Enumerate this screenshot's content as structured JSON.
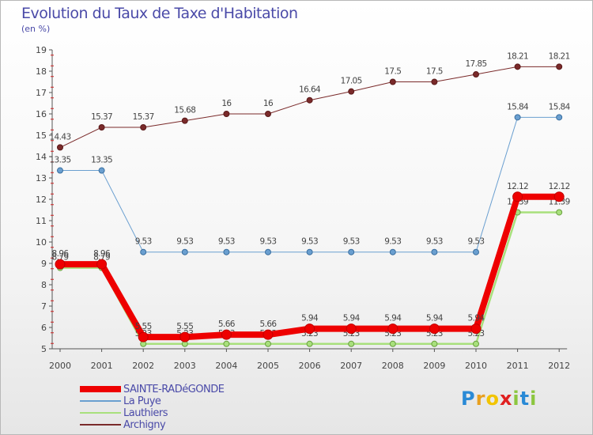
{
  "chart_data": {
    "type": "line",
    "title": "Evolution du Taux de Taxe d'Habitation",
    "subtitle": "(en %)",
    "xlabel": "",
    "ylabel": "(en %)",
    "x": [
      "2000",
      "2001",
      "2002",
      "2003",
      "2004",
      "2005",
      "2006",
      "2007",
      "2008",
      "2009",
      "2010",
      "2011",
      "2012"
    ],
    "ylim": [
      5,
      19
    ],
    "yticks": [
      5,
      6,
      7,
      8,
      9,
      10,
      11,
      12,
      13,
      14,
      15,
      16,
      17,
      18,
      19
    ],
    "grid": false,
    "legend_position": "bottom-left",
    "series": [
      {
        "name": "Archigny",
        "color": "#7a2a2a",
        "values": [
          14.43,
          15.37,
          15.37,
          15.68,
          16,
          16,
          16.64,
          17.05,
          17.5,
          17.5,
          17.85,
          18.21,
          18.21
        ],
        "labels": [
          "14.43",
          "15.37",
          "15.37",
          "15.68",
          "16",
          "16",
          "16.64",
          "17.05",
          "17.5",
          "17.5",
          "17.85",
          "18.21",
          "18.21"
        ]
      },
      {
        "name": "La Puye",
        "color": "#6a9fd0",
        "values": [
          13.35,
          13.35,
          9.53,
          9.53,
          9.53,
          9.53,
          9.53,
          9.53,
          9.53,
          9.53,
          9.53,
          15.84,
          15.84
        ],
        "labels": [
          "13.35",
          "13.35",
          "9.53",
          "9.53",
          "9.53",
          "9.53",
          "9.53",
          "9.53",
          "9.53",
          "9.53",
          "9.53",
          "15.84",
          "15.84"
        ]
      },
      {
        "name": "Lauthiers",
        "color": "#a8e07c",
        "values": [
          8.79,
          8.79,
          5.23,
          5.23,
          5.23,
          5.23,
          5.23,
          5.23,
          5.23,
          5.23,
          5.23,
          11.39,
          11.39
        ],
        "labels": [
          "8.79",
          "8.79",
          "5.23",
          "5.23",
          "5.23",
          "5.23",
          "5.23",
          "5.23",
          "5.23",
          "5.23",
          "5.23",
          "11.39",
          "11.39"
        ]
      },
      {
        "name": "SAINTE-RADéGONDE",
        "color": "#ee0000",
        "values": [
          8.96,
          8.96,
          5.55,
          5.55,
          5.66,
          5.66,
          5.94,
          5.94,
          5.94,
          5.94,
          5.94,
          12.12,
          12.12
        ],
        "labels": [
          "8.96",
          "8.96",
          "5.55",
          "5.55",
          "5.66",
          "5.66",
          "5.94",
          "5.94",
          "5.94",
          "5.94",
          "5.94",
          "12.12",
          "12.12"
        ]
      }
    ]
  },
  "legend": {
    "items": [
      {
        "label": "SAINTE-RADéGONDE",
        "color": "#ee0000",
        "weight": "thick"
      },
      {
        "label": "La Puye",
        "color": "#6a9fd0",
        "weight": "thin"
      },
      {
        "label": "Lauthiers",
        "color": "#a8e07c",
        "weight": "thin"
      },
      {
        "label": "Archigny",
        "color": "#7a2a2a",
        "weight": "thin"
      }
    ]
  },
  "logo": {
    "letters": [
      "P",
      "r",
      "o",
      "x",
      "i",
      "t",
      "i"
    ],
    "colors": [
      "#2a8ad6",
      "#e8a020",
      "#f2c400",
      "#e02020",
      "#8cc63f",
      "#2a8ad6",
      "#8cc63f"
    ]
  }
}
